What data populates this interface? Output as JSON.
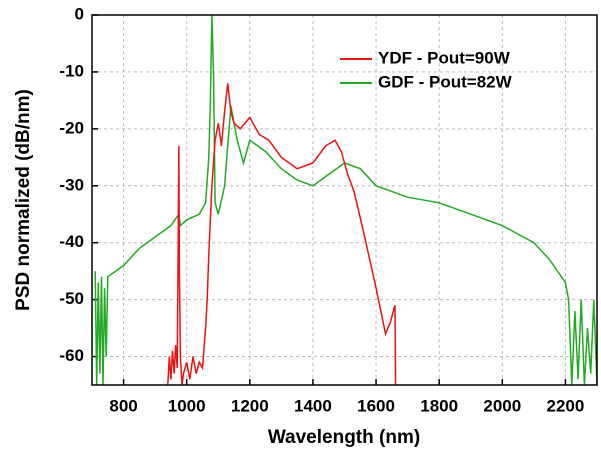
{
  "chart_data": {
    "type": "line",
    "xlabel": "Wavelength (nm)",
    "ylabel": "PSD normalized (dB/nm)",
    "xlim": [
      700,
      2300
    ],
    "xticks": [
      800,
      1000,
      1200,
      1400,
      1600,
      1800,
      2000,
      2200
    ],
    "ylim": [
      -65,
      0
    ],
    "yticks": [
      0,
      -10,
      -20,
      -30,
      -40,
      -50,
      -60
    ],
    "grid": true,
    "legend": "upper right",
    "series": [
      {
        "name": "YDF - Pout=90W",
        "color": "#ee1111",
        "x": [
          940,
          945,
          950,
          955,
          960,
          965,
          970,
          973,
          975,
          977,
          980,
          985,
          990,
          1000,
          1010,
          1020,
          1030,
          1040,
          1050,
          1060,
          1065,
          1070,
          1080,
          1090,
          1100,
          1110,
          1120,
          1130,
          1140,
          1150,
          1170,
          1200,
          1230,
          1260,
          1300,
          1350,
          1400,
          1440,
          1470,
          1490,
          1510,
          1530,
          1560,
          1600,
          1630,
          1645,
          1655,
          1660,
          1662
        ],
        "values": [
          -65,
          -60,
          -64,
          -59,
          -63,
          -58,
          -62,
          -40,
          -23,
          -45,
          -60,
          -65,
          -63,
          -61,
          -64,
          -60,
          -63,
          -61,
          -62,
          -55,
          -50,
          -42,
          -30,
          -22,
          -19,
          -23,
          -17,
          -12,
          -17,
          -19,
          -20,
          -18,
          -21,
          -22,
          -25,
          -27,
          -26,
          -23,
          -22,
          -24,
          -28,
          -31,
          -38,
          -48,
          -56,
          -54,
          -52,
          -51,
          -65
        ]
      },
      {
        "name": "GDF - Pout=82W",
        "color": "#22aa22",
        "x": [
          710,
          715,
          720,
          725,
          730,
          735,
          740,
          745,
          750,
          800,
          850,
          900,
          950,
          975,
          980,
          1000,
          1040,
          1060,
          1070,
          1075,
          1080,
          1085,
          1090,
          1100,
          1120,
          1140,
          1160,
          1180,
          1200,
          1250,
          1300,
          1350,
          1400,
          1450,
          1500,
          1550,
          1600,
          1700,
          1800,
          1900,
          2000,
          2100,
          2150,
          2200,
          2210,
          2220,
          2230,
          2240,
          2250,
          2260,
          2270,
          2280,
          2290,
          2300
        ],
        "values": [
          -45,
          -65,
          -47,
          -63,
          -46,
          -65,
          -48,
          -60,
          -46,
          -44,
          -41,
          -39,
          -37,
          -35,
          -37,
          -36,
          -35,
          -33,
          -25,
          -15,
          0,
          -10,
          -33,
          -35,
          -30,
          -16,
          -22,
          -26,
          -22,
          -24,
          -27,
          -29,
          -30,
          -28,
          -26,
          -27,
          -30,
          -32,
          -33,
          -35,
          -37,
          -40,
          -43,
          -47,
          -50,
          -65,
          -52,
          -64,
          -50,
          -65,
          -55,
          -63,
          -50,
          -65
        ]
      }
    ]
  }
}
